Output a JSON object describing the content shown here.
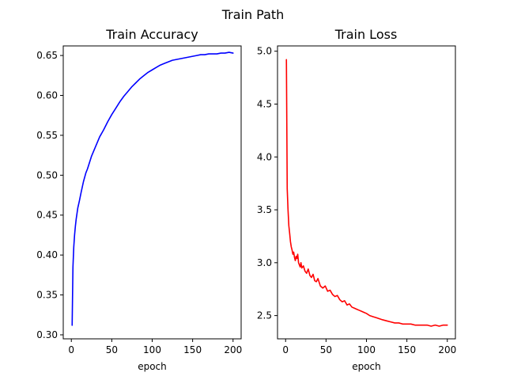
{
  "figure": {
    "suptitle": "Train Path"
  },
  "chart_data": [
    {
      "type": "line",
      "title": "Train Accuracy",
      "xlabel": "epoch",
      "ylabel": "",
      "xlim": [
        -10,
        210
      ],
      "ylim": [
        0.295,
        0.662
      ],
      "xticks": [
        0,
        50,
        100,
        150,
        200
      ],
      "yticks": [
        0.3,
        0.35,
        0.4,
        0.45,
        0.5,
        0.55,
        0.6,
        0.65
      ],
      "ytick_decimals": 2,
      "grid": false,
      "series": [
        {
          "color": "#0000ff",
          "x": [
            1,
            2,
            3,
            4,
            5,
            6,
            8,
            10,
            12,
            15,
            18,
            20,
            25,
            30,
            35,
            40,
            45,
            50,
            55,
            60,
            65,
            70,
            75,
            80,
            85,
            90,
            95,
            100,
            105,
            110,
            115,
            120,
            125,
            130,
            135,
            140,
            145,
            150,
            155,
            160,
            165,
            170,
            175,
            180,
            185,
            190,
            195,
            200
          ],
          "y": [
            0.312,
            0.385,
            0.41,
            0.425,
            0.436,
            0.445,
            0.459,
            0.468,
            0.478,
            0.492,
            0.503,
            0.508,
            0.524,
            0.536,
            0.548,
            0.557,
            0.567,
            0.576,
            0.584,
            0.592,
            0.599,
            0.605,
            0.611,
            0.616,
            0.621,
            0.625,
            0.629,
            0.632,
            0.635,
            0.638,
            0.64,
            0.642,
            0.644,
            0.645,
            0.646,
            0.647,
            0.648,
            0.649,
            0.65,
            0.651,
            0.651,
            0.652,
            0.652,
            0.652,
            0.653,
            0.653,
            0.654,
            0.653
          ]
        }
      ]
    },
    {
      "type": "line",
      "title": "Train Loss",
      "xlabel": "epoch",
      "ylabel": "",
      "xlim": [
        -10,
        210
      ],
      "ylim": [
        2.28,
        5.05
      ],
      "xticks": [
        0,
        50,
        100,
        150,
        200
      ],
      "yticks": [
        2.5,
        3.0,
        3.5,
        4.0,
        4.5,
        5.0
      ],
      "ytick_decimals": 1,
      "grid": false,
      "series": [
        {
          "color": "#ff0000",
          "x": [
            1,
            2,
            3,
            4,
            5,
            6,
            7,
            8,
            9,
            10,
            11,
            12,
            13,
            14,
            15,
            16,
            17,
            18,
            19,
            20,
            22,
            24,
            26,
            28,
            30,
            32,
            34,
            36,
            38,
            40,
            43,
            46,
            49,
            52,
            55,
            58,
            61,
            64,
            67,
            70,
            73,
            76,
            79,
            82,
            85,
            88,
            91,
            94,
            97,
            100,
            104,
            108,
            112,
            116,
            120,
            125,
            130,
            135,
            140,
            145,
            150,
            155,
            160,
            165,
            170,
            175,
            180,
            185,
            190,
            195,
            200
          ],
          "y": [
            4.92,
            3.7,
            3.5,
            3.35,
            3.28,
            3.2,
            3.15,
            3.12,
            3.08,
            3.1,
            3.05,
            3.02,
            3.06,
            3.04,
            3.08,
            3.0,
            2.98,
            2.96,
            3.0,
            2.95,
            2.97,
            2.92,
            2.9,
            2.94,
            2.88,
            2.86,
            2.89,
            2.83,
            2.82,
            2.85,
            2.78,
            2.76,
            2.78,
            2.73,
            2.74,
            2.7,
            2.68,
            2.69,
            2.65,
            2.63,
            2.64,
            2.6,
            2.61,
            2.58,
            2.57,
            2.56,
            2.55,
            2.54,
            2.53,
            2.52,
            2.5,
            2.49,
            2.48,
            2.47,
            2.46,
            2.45,
            2.44,
            2.43,
            2.43,
            2.42,
            2.42,
            2.42,
            2.41,
            2.41,
            2.41,
            2.41,
            2.4,
            2.41,
            2.4,
            2.41,
            2.41
          ]
        }
      ]
    }
  ]
}
